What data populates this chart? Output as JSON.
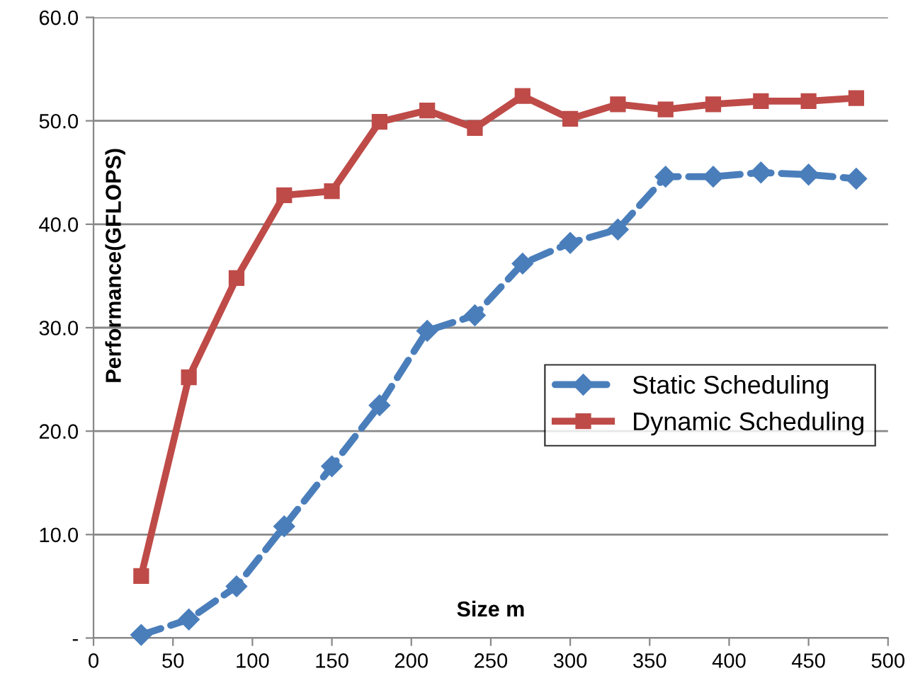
{
  "chart_data": {
    "type": "line",
    "xlabel": "Size m",
    "ylabel": "Performance(GFLOPS)",
    "x": [
      30,
      60,
      90,
      120,
      150,
      180,
      210,
      240,
      270,
      300,
      330,
      360,
      390,
      420,
      450,
      480
    ],
    "series": [
      {
        "name": "Static Scheduling",
        "color": "#4a7ebb",
        "marker": "diamond",
        "line_style": "dashed",
        "values": [
          0.3,
          1.8,
          5.0,
          10.8,
          16.6,
          22.5,
          29.7,
          31.2,
          36.2,
          38.2,
          39.5,
          44.6,
          44.6,
          45.0,
          44.8,
          44.4
        ]
      },
      {
        "name": "Dynamic Scheduling",
        "color": "#be4b48",
        "marker": "square",
        "line_style": "solid",
        "values": [
          6.0,
          25.2,
          34.8,
          42.8,
          43.2,
          49.9,
          51.0,
          49.3,
          52.4,
          50.2,
          51.6,
          51.1,
          51.6,
          51.9,
          51.9,
          52.2
        ]
      }
    ],
    "xlim": [
      0,
      500
    ],
    "xticks": [
      0,
      50,
      100,
      150,
      200,
      250,
      300,
      350,
      400,
      450,
      500
    ],
    "ylim": [
      0,
      60
    ],
    "yticks": [
      {
        "value": 0,
        "label": "-"
      },
      {
        "value": 10,
        "label": "10.0"
      },
      {
        "value": 20,
        "label": "20.0"
      },
      {
        "value": 30,
        "label": "30.0"
      },
      {
        "value": 40,
        "label": "40.0"
      },
      {
        "value": 50,
        "label": "50.0"
      },
      {
        "value": 60,
        "label": "60.0"
      }
    ],
    "grid": "y",
    "legend": "center right"
  }
}
